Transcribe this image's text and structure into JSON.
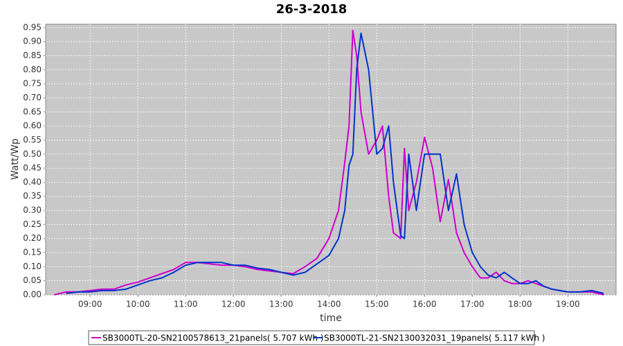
{
  "chart_data": {
    "type": "line",
    "title": "26-3-2018",
    "x_label": "time",
    "y_label": "Watt/Wp",
    "x": [
      8.25,
      8.5,
      8.75,
      9.0,
      9.25,
      9.5,
      9.75,
      10.0,
      10.25,
      10.5,
      10.75,
      11.0,
      11.25,
      11.5,
      11.75,
      12.0,
      12.25,
      12.5,
      12.75,
      13.0,
      13.25,
      13.5,
      13.75,
      14.0,
      14.2,
      14.33,
      14.42,
      14.5,
      14.58,
      14.67,
      14.83,
      15.0,
      15.12,
      15.25,
      15.35,
      15.5,
      15.58,
      15.67,
      15.83,
      16.0,
      16.17,
      16.33,
      16.5,
      16.67,
      16.83,
      17.0,
      17.17,
      17.33,
      17.5,
      17.67,
      17.83,
      18.0,
      18.17,
      18.33,
      18.5,
      18.67,
      18.83,
      19.0,
      19.25,
      19.5,
      19.75
    ],
    "series": [
      {
        "name": "SB3000TL-20-SN2100578613_21panels( 5.707 kWh )",
        "color": "#cc00cc",
        "values": [
          0.0,
          0.01,
          0.01,
          0.015,
          0.02,
          0.02,
          0.035,
          0.045,
          0.06,
          0.075,
          0.09,
          0.115,
          0.115,
          0.11,
          0.105,
          0.105,
          0.1,
          0.09,
          0.085,
          0.08,
          0.075,
          0.1,
          0.13,
          0.2,
          0.3,
          0.47,
          0.6,
          0.94,
          0.85,
          0.65,
          0.5,
          0.55,
          0.6,
          0.35,
          0.22,
          0.2,
          0.52,
          0.3,
          0.4,
          0.56,
          0.45,
          0.26,
          0.41,
          0.22,
          0.15,
          0.1,
          0.06,
          0.06,
          0.08,
          0.05,
          0.04,
          0.04,
          0.05,
          0.04,
          0.03,
          0.02,
          0.015,
          0.01,
          0.01,
          0.01,
          0.0
        ]
      },
      {
        "name": "SB3000TL-21-SN2130032031_19panels( 5.117 kWh )",
        "color": "#0033cc",
        "values": [
          null,
          0.005,
          0.01,
          0.01,
          0.015,
          0.015,
          0.02,
          0.035,
          0.05,
          0.06,
          0.08,
          0.105,
          0.115,
          0.115,
          0.115,
          0.105,
          0.105,
          0.095,
          0.09,
          0.08,
          0.07,
          0.08,
          0.11,
          0.14,
          0.2,
          0.3,
          0.46,
          0.5,
          0.8,
          0.93,
          0.8,
          0.5,
          0.52,
          0.6,
          0.4,
          0.21,
          0.2,
          0.5,
          0.3,
          0.5,
          0.5,
          0.5,
          0.3,
          0.43,
          0.25,
          0.15,
          0.1,
          0.07,
          0.06,
          0.08,
          0.06,
          0.04,
          0.04,
          0.05,
          0.03,
          0.02,
          0.015,
          0.01,
          0.01,
          0.015,
          0.005
        ]
      }
    ],
    "xlim": [
      8.07,
      20.01
    ],
    "xticks": [
      {
        "value": 9,
        "label": "09:00"
      },
      {
        "value": 10,
        "label": "10:00"
      },
      {
        "value": 11,
        "label": "11:00"
      },
      {
        "value": 12,
        "label": "12:00"
      },
      {
        "value": 13,
        "label": "13:00"
      },
      {
        "value": 14,
        "label": "14:00"
      },
      {
        "value": 15,
        "label": "15:00"
      },
      {
        "value": 16,
        "label": "16:00"
      },
      {
        "value": 17,
        "label": "17:00"
      },
      {
        "value": 18,
        "label": "18:00"
      },
      {
        "value": 19,
        "label": "19:00"
      }
    ],
    "ylim": [
      0,
      0.962
    ],
    "yticks": [
      {
        "value": 0,
        "label": "0.00"
      },
      0.05,
      {
        "value": 0.1,
        "label": "0.10"
      },
      0.15,
      {
        "value": 0.2,
        "label": "0.20"
      },
      0.25,
      {
        "value": 0.3,
        "label": "0.30"
      },
      0.35,
      {
        "value": 0.4,
        "label": "0.40"
      },
      0.45,
      {
        "value": 0.5,
        "label": "0.50"
      },
      0.55,
      {
        "value": 0.6,
        "label": "0.60"
      },
      0.65,
      {
        "value": 0.7,
        "label": "0.70"
      },
      0.75,
      {
        "value": 0.8,
        "label": "0.80"
      },
      0.85,
      {
        "value": 0.9,
        "label": "0.90"
      },
      0.95
    ],
    "grid": true
  }
}
